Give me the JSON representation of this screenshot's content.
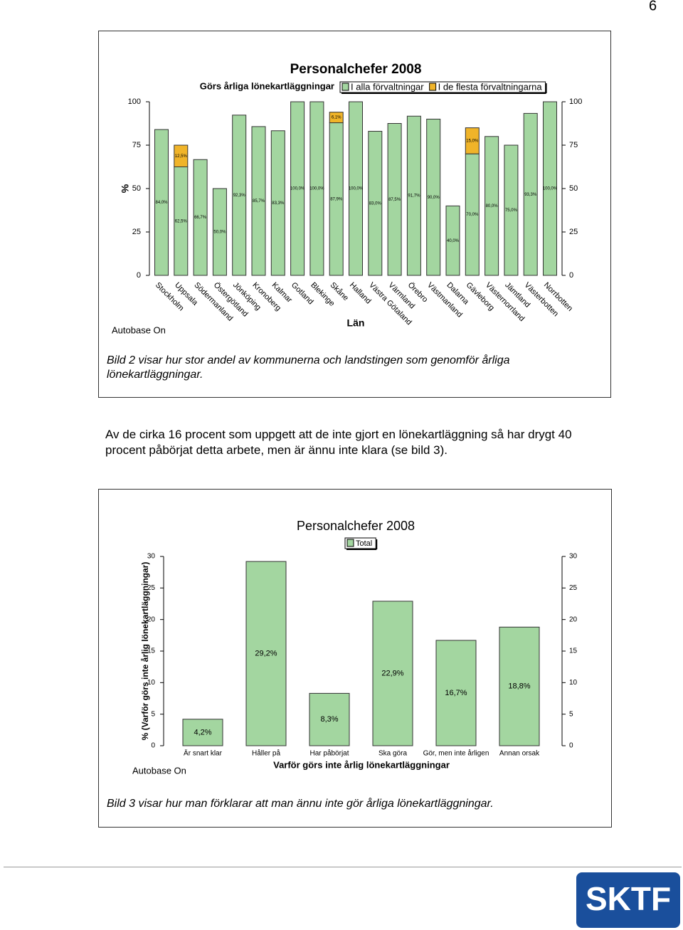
{
  "document": {
    "page_number": "6",
    "caption_1": "Bild 2 visar hur stor andel av kommunerna och landstingen som genomför årliga lönekartläggningar.",
    "paragraph": "Av de cirka 16 procent som uppgett att de inte gjort en lönekartläggning så har drygt 40 procent påbörjat detta arbete, men är ännu inte klara (se bild 3).",
    "caption_2": "Bild 3 visar hur man förklarar att man ännu inte gör årliga lönekartläggningar.",
    "logo": "SKTF"
  },
  "chart_data": [
    {
      "type": "bar",
      "stacked": true,
      "title": "Personalchefer 2008",
      "subtitle": "Görs årliga lönekartläggningar",
      "x_label": "Län",
      "y_label": "%",
      "annotation": "Autobase On",
      "categories": [
        "Stockholm",
        "Uppsala",
        "Södermanland",
        "Östergötland",
        "Jönköping",
        "Kronoberg",
        "Kalmar",
        "Gotland",
        "Blekinge",
        "Skåne",
        "Halland",
        "Västra Götaland",
        "Värmland",
        "Örebro",
        "Västmanland",
        "Dalarna",
        "Gävleborg",
        "Västernorrland",
        "Jämtland",
        "Västerbotten",
        "Norrbotten"
      ],
      "series": [
        {
          "name": "I alla förvaltningar",
          "color": "#a3d6a0",
          "values": [
            84.0,
            62.5,
            66.7,
            50.0,
            92.3,
            85.7,
            83.3,
            100.0,
            100.0,
            87.9,
            100.0,
            83.0,
            87.5,
            91.7,
            90.0,
            40.0,
            70.0,
            80.0,
            75.0,
            93.3,
            100.0
          ],
          "value_labels": [
            "84,0%",
            "62,5%",
            "66,7%",
            "50,0%",
            "92,3%",
            "85,7%",
            "83,3%",
            "100,0%",
            "100,0%",
            "87,9%",
            "100,0%",
            "83,0%",
            "87,5%",
            "91,7%",
            "90,0%",
            "40,0%",
            "70,0%",
            "80,0%",
            "75,0%",
            "93,3%",
            "100,0%"
          ]
        },
        {
          "name": "I de flesta förvaltningarna",
          "color": "#f0b429",
          "values": [
            null,
            12.5,
            null,
            null,
            null,
            null,
            null,
            null,
            null,
            6.1,
            null,
            null,
            null,
            null,
            null,
            null,
            15.0,
            null,
            null,
            null,
            null
          ],
          "value_labels": [
            null,
            "12,5%",
            null,
            null,
            null,
            null,
            null,
            null,
            null,
            "6,1%",
            null,
            null,
            null,
            null,
            null,
            null,
            "15,0%",
            null,
            null,
            null,
            null
          ]
        }
      ],
      "ylim": [
        0,
        100
      ],
      "yticks": [
        0,
        25,
        50,
        75,
        100
      ]
    },
    {
      "type": "bar",
      "stacked": false,
      "title": "Personalchefer 2008",
      "x_label": "Varför görs inte årlig lönekartläggningar",
      "y_label": "% (Varför görs inte årlig lönekartläggningar)",
      "annotation": "Autobase On",
      "categories": [
        "Är snart klar",
        "Håller på",
        "Har påbörjat",
        "Ska göra",
        "Gör, men inte årligen",
        "Annan orsak"
      ],
      "series": [
        {
          "name": "Total",
          "color": "#a3d6a0",
          "values": [
            4.2,
            29.2,
            8.3,
            22.9,
            16.7,
            18.8
          ],
          "value_labels": [
            "4,2%",
            "29,2%",
            "8,3%",
            "22,9%",
            "16,7%",
            "18,8%"
          ]
        }
      ],
      "ylim": [
        0,
        30
      ],
      "yticks": [
        0,
        5,
        10,
        15,
        20,
        25,
        30
      ]
    }
  ]
}
